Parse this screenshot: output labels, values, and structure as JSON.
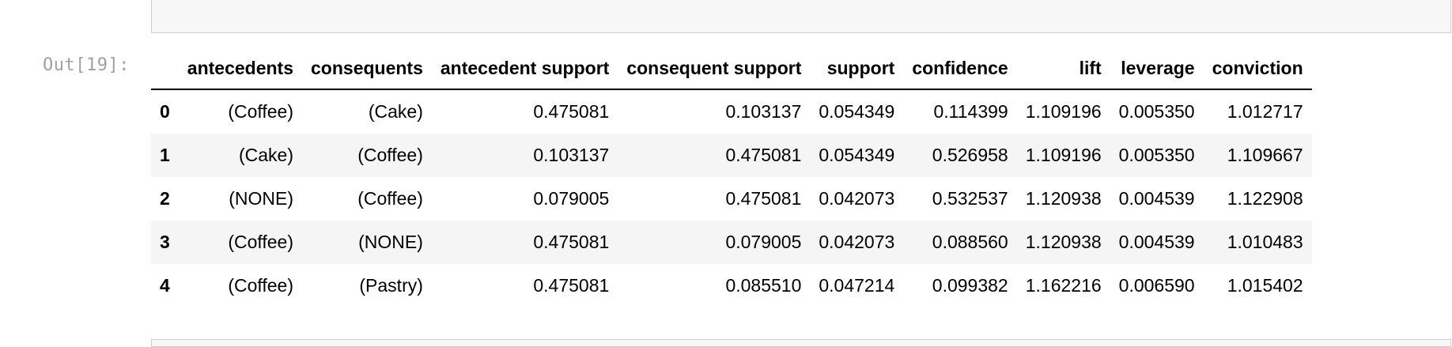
{
  "prompt": {
    "out_label": "Out[19]:"
  },
  "table": {
    "columns": [
      "antecedents",
      "consequents",
      "antecedent support",
      "consequent support",
      "support",
      "confidence",
      "lift",
      "leverage",
      "conviction"
    ],
    "rows": [
      {
        "index": "0",
        "cells": [
          "(Coffee)",
          "(Cake)",
          "0.475081",
          "0.103137",
          "0.054349",
          "0.114399",
          "1.109196",
          "0.005350",
          "1.012717"
        ]
      },
      {
        "index": "1",
        "cells": [
          "(Cake)",
          "(Coffee)",
          "0.103137",
          "0.475081",
          "0.054349",
          "0.526958",
          "1.109196",
          "0.005350",
          "1.109667"
        ]
      },
      {
        "index": "2",
        "cells": [
          "(NONE)",
          "(Coffee)",
          "0.079005",
          "0.475081",
          "0.042073",
          "0.532537",
          "1.120938",
          "0.004539",
          "1.122908"
        ]
      },
      {
        "index": "3",
        "cells": [
          "(Coffee)",
          "(NONE)",
          "0.475081",
          "0.079005",
          "0.042073",
          "0.088560",
          "1.120938",
          "0.004539",
          "1.010483"
        ]
      },
      {
        "index": "4",
        "cells": [
          "(Coffee)",
          "(Pastry)",
          "0.475081",
          "0.085510",
          "0.047214",
          "0.099382",
          "1.162216",
          "0.006590",
          "1.015402"
        ]
      }
    ]
  }
}
